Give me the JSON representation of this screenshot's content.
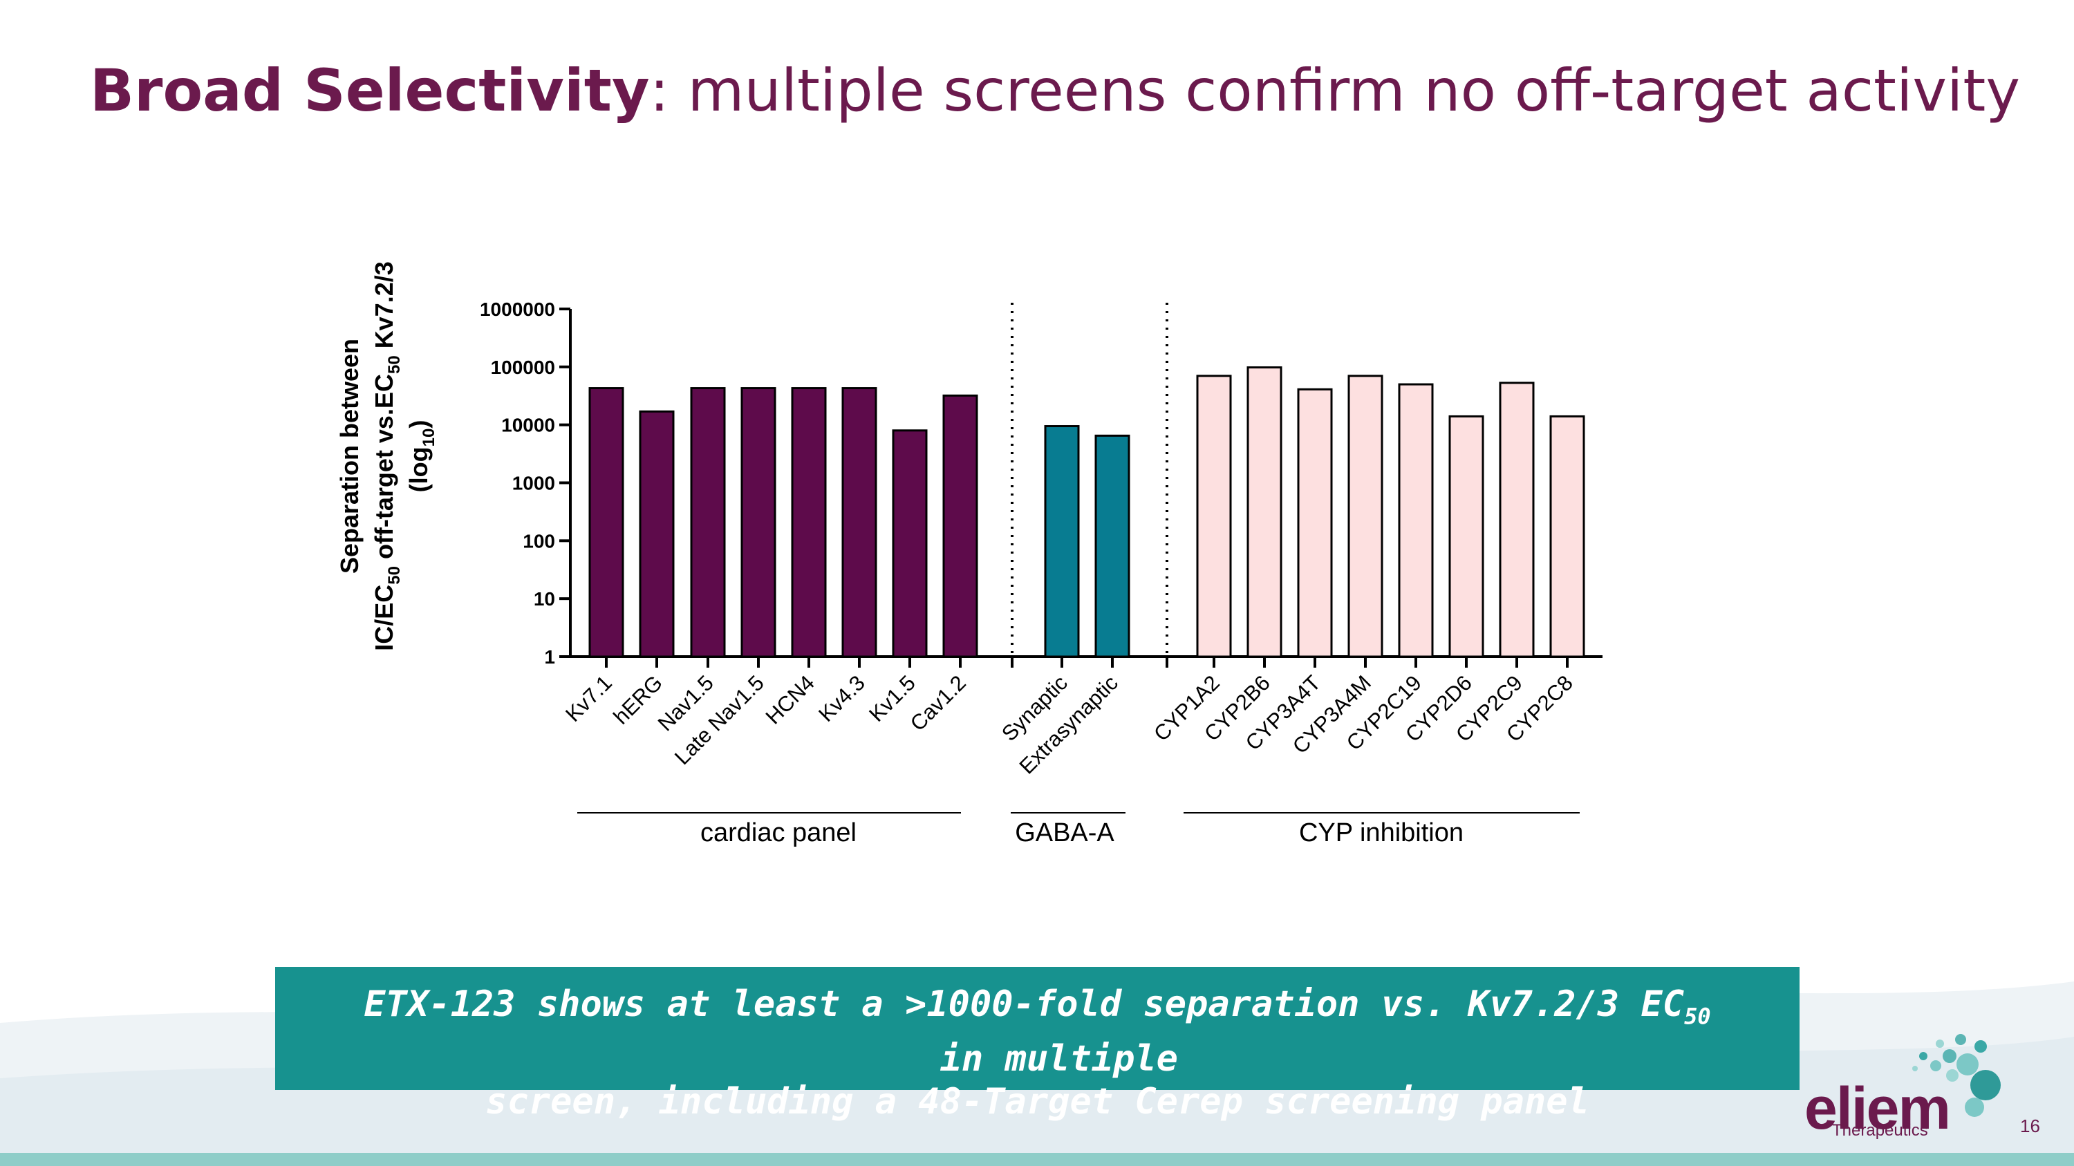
{
  "slide": {
    "title_bold": "Broad Selectivity",
    "title_rest": ": multiple screens confirm no off-target activity",
    "callout_line1_pre": "ETX-123 shows at least a >1000-fold separation vs. Kv7.2/3 EC",
    "callout_line1_sub": "50",
    "callout_line1_post": "  in multiple",
    "callout_line2": "screen, including a 48-Target Cerep screening panel",
    "logo_name": "eliem",
    "logo_sub": "Therapeutics",
    "page_number": "16",
    "colors": {
      "title": "#6b1a4d",
      "callout_bg": "#17928f",
      "cardiac": "#5e0b4b",
      "gaba": "#087c91",
      "cyp": "#fde0e0"
    }
  },
  "chart_data": {
    "type": "bar",
    "scale": "log10",
    "ylim": [
      1,
      1000000
    ],
    "yticks": [
      "1",
      "10",
      "100",
      "1000",
      "10000",
      "100000",
      "1000000"
    ],
    "ylabel_line1": "Separation between",
    "ylabel_line2_a": "IC/EC",
    "ylabel_line2_sub1": "50",
    "ylabel_line2_b": " off-target vs.EC",
    "ylabel_line2_sub2": "50",
    "ylabel_line2_c": " Kv7.2/3",
    "ylabel_line3_a": "(log",
    "ylabel_line3_sub": "10",
    "ylabel_line3_b": ")",
    "groups": [
      {
        "name": "cardiac panel",
        "color": "#5e0b4b",
        "categories": [
          "Kv7.1",
          "hERG",
          "Nav1.5",
          "Late Nav1.5",
          "HCN4",
          "Kv4.3",
          "Kv1.5",
          "Cav1.2"
        ],
        "values": [
          43000,
          17000,
          43000,
          43000,
          43000,
          43000,
          8000,
          32000
        ]
      },
      {
        "name": "GABA-A",
        "color": "#087c91",
        "categories": [
          "Synaptic",
          "Extrasynaptic"
        ],
        "values": [
          9500,
          6500
        ]
      },
      {
        "name": "CYP inhibition",
        "color": "#fde0e0",
        "categories": [
          "CYP1A2",
          "CYP2B6",
          "CYP3A4T",
          "CYP3A4M",
          "CYP2C19",
          "CYP2D6",
          "CYP2C9",
          "CYP2C8"
        ],
        "values": [
          70000,
          98000,
          41000,
          70000,
          50000,
          14000,
          53000,
          14000
        ]
      }
    ]
  }
}
